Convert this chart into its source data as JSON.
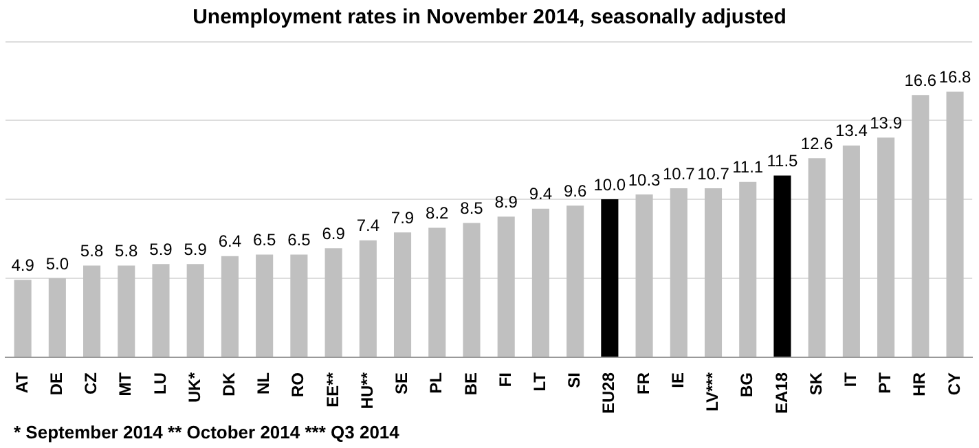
{
  "chart_data": {
    "type": "bar",
    "title": "Unemployment rates in November 2014, seasonally adjusted",
    "categories": [
      "AT",
      "DE",
      "CZ",
      "MT",
      "LU",
      "UK*",
      "DK",
      "NL",
      "RO",
      "EE**",
      "HU**",
      "SE",
      "PL",
      "BE",
      "FI",
      "LT",
      "SI",
      "EU28",
      "FR",
      "IE",
      "LV***",
      "BG",
      "EA18",
      "SK",
      "IT",
      "PT",
      "HR",
      "CY"
    ],
    "values": [
      4.9,
      5.0,
      5.8,
      5.8,
      5.9,
      5.9,
      6.4,
      6.5,
      6.5,
      6.9,
      7.4,
      7.9,
      8.2,
      8.5,
      8.9,
      9.4,
      9.6,
      10.0,
      10.3,
      10.7,
      10.7,
      11.1,
      11.5,
      12.6,
      13.4,
      13.9,
      16.6,
      16.8
    ],
    "value_labels": [
      "4.9",
      "5.0",
      "5.8",
      "5.8",
      "5.9",
      "5.9",
      "6.4",
      "6.5",
      "6.5",
      "6.9",
      "7.4",
      "7.9",
      "8.2",
      "8.5",
      "8.9",
      "9.4",
      "9.6",
      "10.0",
      "10.3",
      "10.7",
      "10.7",
      "11.1",
      "11.5",
      "12.6",
      "13.4",
      "13.9",
      "16.6",
      "16.8"
    ],
    "colors": [
      "#c0c0c0",
      "#c0c0c0",
      "#c0c0c0",
      "#c0c0c0",
      "#c0c0c0",
      "#c0c0c0",
      "#c0c0c0",
      "#c0c0c0",
      "#c0c0c0",
      "#c0c0c0",
      "#c0c0c0",
      "#c0c0c0",
      "#c0c0c0",
      "#c0c0c0",
      "#c0c0c0",
      "#c0c0c0",
      "#c0c0c0",
      "#000000",
      "#c0c0c0",
      "#c0c0c0",
      "#c0c0c0",
      "#c0c0c0",
      "#000000",
      "#c0c0c0",
      "#c0c0c0",
      "#c0c0c0",
      "#c0c0c0",
      "#c0c0c0"
    ],
    "ylim": [
      0,
      20
    ],
    "yticks": [
      {
        "value": 0,
        "label": null
      },
      {
        "value": 5,
        "label": null
      },
      {
        "value": 10,
        "label": null
      },
      {
        "value": 15,
        "label": null
      }
    ],
    "tick_labels": "x",
    "grid": "y",
    "legend": false,
    "annotations": [
      "* September 2014     ** October 2014     *** Q3 2014"
    ]
  }
}
